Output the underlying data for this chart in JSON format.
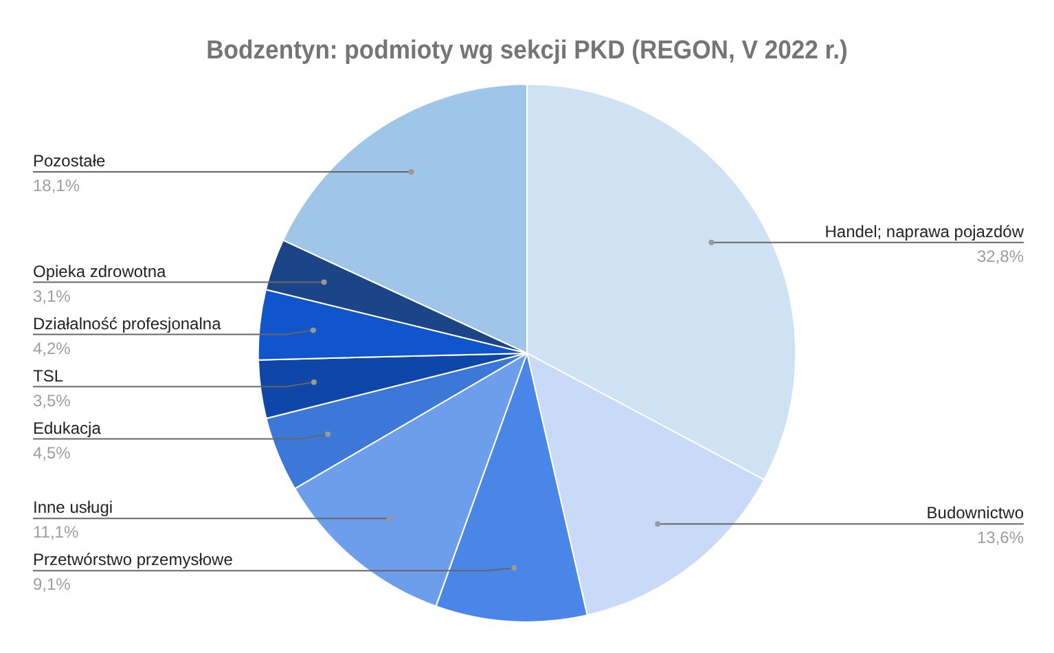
{
  "chart_data": {
    "type": "pie",
    "title": "Bodzentyn: podmioty wg sekcji PKD (REGON, V 2022 r.)",
    "categories": [
      "Handel; naprawa pojazdów",
      "Budownictwo",
      "Przetwórstwo przemysłowe",
      "Inne usługi",
      "Edukacja",
      "TSL",
      "Działalność profesjonalna",
      "Opieka zdrowotna",
      "Pozostałe"
    ],
    "values": [
      32.8,
      13.6,
      9.1,
      11.1,
      4.5,
      3.5,
      4.2,
      3.1,
      18.1
    ],
    "colors": [
      "#cfe2f3",
      "#c9daf8",
      "#4a86e8",
      "#6d9eeb",
      "#3c78d8",
      "#0f47a8",
      "#1155cc",
      "#1c4587",
      "#9fc5e8"
    ],
    "value_labels": [
      "32,8%",
      "13,6%",
      "9,1%",
      "11,1%",
      "4,5%",
      "3,5%",
      "4,2%",
      "3,1%",
      "18,1%"
    ],
    "legend": false
  }
}
